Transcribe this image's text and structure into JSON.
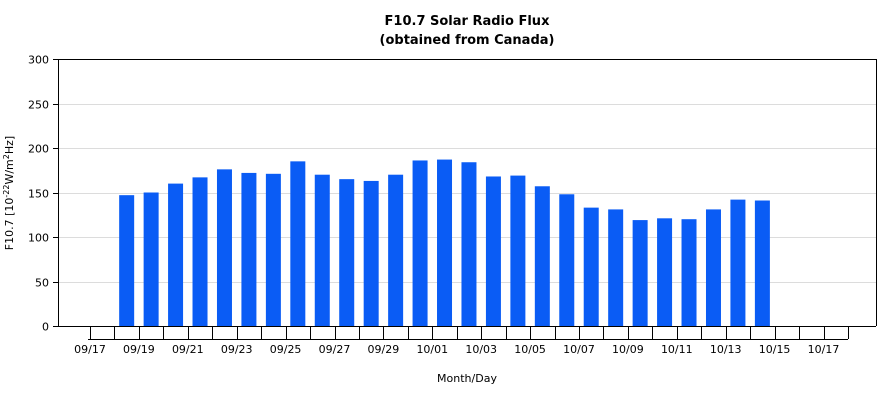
{
  "chart_data": {
    "type": "bar",
    "title": "F10.7 Solar Radio Flux",
    "subtitle": "(obtained from Canada)",
    "xlabel": "Month/Day",
    "ylabel": {
      "prefix": "F10.7 [10",
      "exp1": "-22",
      "mid": "W/m",
      "exp2": "2",
      "suffix": "Hz]"
    },
    "ylim": [
      0,
      300
    ],
    "yticks": [
      "0",
      "50",
      "100",
      "150",
      "200",
      "250",
      "300"
    ],
    "grid": true,
    "bar_color": "#0a5cf5",
    "categories": [
      "09/17",
      "09/18",
      "09/19",
      "09/20",
      "09/21",
      "09/22",
      "09/23",
      "09/24",
      "09/25",
      "09/26",
      "09/27",
      "09/28",
      "09/29",
      "09/30",
      "10/01",
      "10/02",
      "10/03",
      "10/04",
      "10/05",
      "10/06",
      "10/07",
      "10/08",
      "10/09",
      "10/10",
      "10/11",
      "10/12",
      "10/13",
      "10/14",
      "10/15",
      "10/16",
      "10/17",
      "10/18"
    ],
    "xtick_labels": [
      "09/17",
      "09/19",
      "09/21",
      "09/23",
      "09/25",
      "09/27",
      "09/29",
      "10/01",
      "10/03",
      "10/05",
      "10/07",
      "10/09",
      "10/11",
      "10/13",
      "10/15",
      "10/17"
    ],
    "values": [
      null,
      147,
      150,
      160,
      167,
      176,
      172,
      171,
      185,
      170,
      165,
      163,
      170,
      186,
      187,
      184,
      168,
      169,
      157,
      148,
      133,
      131,
      119,
      121,
      120,
      131,
      142,
      141,
      null,
      null,
      null,
      null
    ]
  }
}
